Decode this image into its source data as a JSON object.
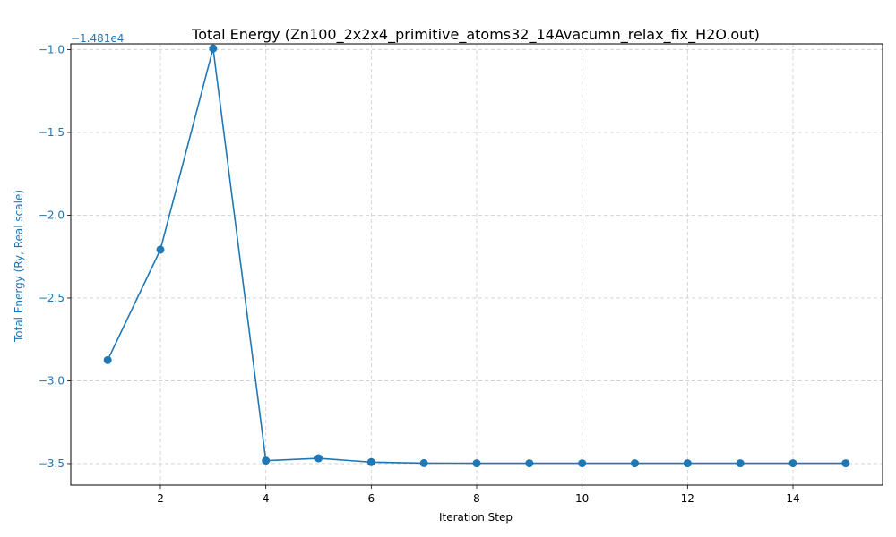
{
  "chart_data": {
    "type": "line",
    "title": "Total Energy (Zn100_2x2x4_primitive_atoms32_14Avacumn_relax_fix_H2O.out)",
    "xlabel": "Iteration Step",
    "ylabel": "Total Energy (Ry, Real scale)",
    "offset_text": "−1.481e4",
    "xlim": [
      0.3,
      15.7
    ],
    "ylim": [
      -3.63,
      -0.965
    ],
    "x_ticks": [
      2,
      4,
      6,
      8,
      10,
      12,
      14
    ],
    "y_ticks": [
      -1.0,
      -1.5,
      -2.0,
      -2.5,
      -3.0,
      -3.5
    ],
    "y_tick_labels": [
      "−1.0",
      "−1.5",
      "−2.0",
      "−2.5",
      "−3.0",
      "−3.5"
    ],
    "grid": true,
    "colors": {
      "series": "#1f77b4",
      "ylabel": "#1f77b4",
      "grid": "#cccccc"
    },
    "series": [
      {
        "x": [
          1,
          2,
          3,
          4,
          5,
          6,
          7,
          8,
          9,
          10,
          11,
          12,
          13,
          14,
          15
        ],
        "values": [
          -2.875,
          -2.208,
          -0.993,
          -3.482,
          -3.468,
          -3.491,
          -3.497,
          -3.498,
          -3.498,
          -3.498,
          -3.498,
          -3.498,
          -3.498,
          -3.498,
          -3.498
        ]
      }
    ]
  }
}
